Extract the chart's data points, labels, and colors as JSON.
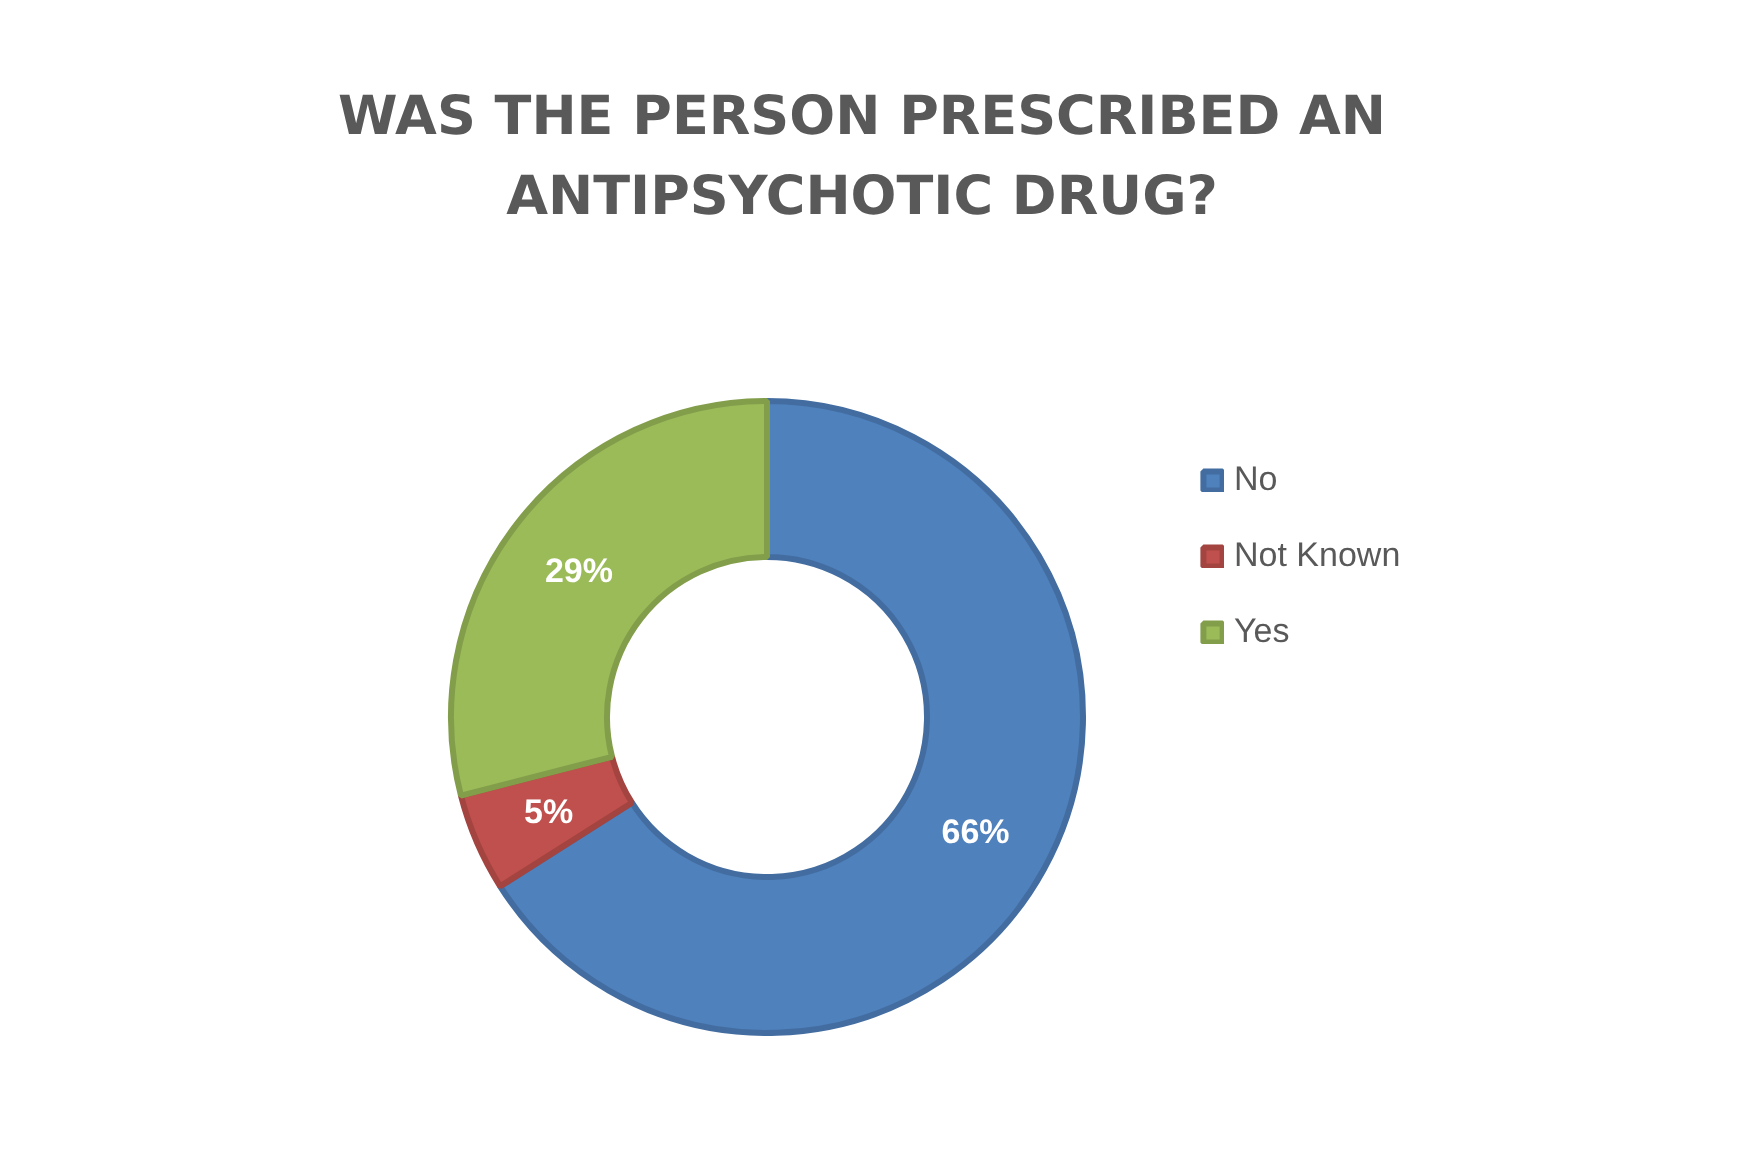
{
  "chart_data": {
    "type": "donut",
    "title": "WAS THE PERSON PRESCRIBED AN ANTIPSYCHOTIC DRUG?",
    "categories": [
      "No",
      "Not Known",
      "Yes"
    ],
    "values": [
      66,
      5,
      29
    ],
    "colors": [
      "#4f81bd",
      "#c0504d",
      "#9bbb59"
    ],
    "value_labels": [
      "66%",
      "5%",
      "29%"
    ],
    "legend": "right"
  }
}
